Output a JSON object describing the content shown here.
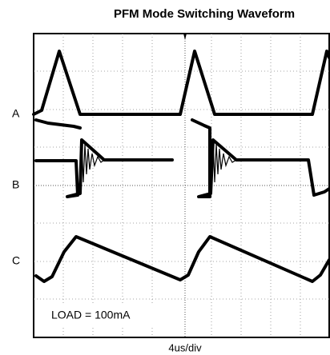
{
  "title": "PFM Mode Switching Waveform",
  "channels": [
    "A",
    "B",
    "C"
  ],
  "annotation": "LOAD = 100mA",
  "x_axis_label": "4us/div"
}
